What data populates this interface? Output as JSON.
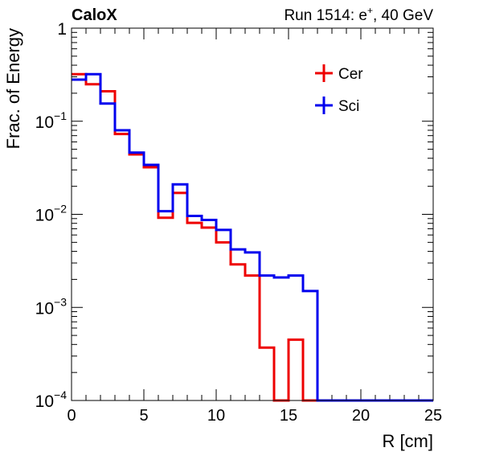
{
  "chart_data": {
    "type": "line",
    "experiment_label": "CaloX",
    "run_label": "Run 1514: e",
    "run_label_sup": "+",
    "run_label_rest": ", 40 GeV",
    "xlabel": "R [cm]",
    "ylabel": "Frac. of Energy",
    "xlim": [
      0,
      25
    ],
    "ylim": [
      0.0001,
      1
    ],
    "yscale": "log",
    "legend_position": "top-right",
    "x_ticks": [
      0,
      5,
      10,
      15,
      20,
      25
    ],
    "y_ticks": [
      {
        "value": 1,
        "base": "1",
        "exp": ""
      },
      {
        "value": 0.1,
        "base": "10",
        "exp": "−1"
      },
      {
        "value": 0.01,
        "base": "10",
        "exp": "−2"
      },
      {
        "value": 0.001,
        "base": "10",
        "exp": "−3"
      },
      {
        "value": 0.0001,
        "base": "10",
        "exp": "−4"
      }
    ],
    "bin_edges": [
      0,
      1,
      2,
      3,
      4,
      5,
      6,
      7,
      8,
      9,
      10,
      11,
      12,
      13,
      14,
      15,
      16,
      17,
      18,
      19,
      20,
      21,
      22,
      23,
      24,
      25
    ],
    "series": [
      {
        "name": "Cer",
        "color": "#ee0000",
        "values": [
          0.32,
          0.25,
          0.21,
          0.073,
          0.044,
          0.032,
          0.0092,
          0.017,
          0.0081,
          0.0072,
          0.005,
          0.0029,
          0.0022,
          0.00037,
          0.0001,
          0.00045,
          0.0001,
          0.0001,
          0.0001,
          0.0001,
          0.0001,
          0.0001,
          0.0001,
          0.0001,
          0.0001
        ]
      },
      {
        "name": "Sci",
        "color": "#0000ee",
        "values": [
          0.28,
          0.32,
          0.155,
          0.08,
          0.046,
          0.034,
          0.0108,
          0.021,
          0.0096,
          0.0087,
          0.0068,
          0.0042,
          0.0039,
          0.0022,
          0.0021,
          0.0022,
          0.0015,
          0.0001,
          0.0001,
          0.0001,
          0.0001,
          0.0001,
          0.0001,
          0.0001,
          0.0001
        ]
      }
    ]
  }
}
